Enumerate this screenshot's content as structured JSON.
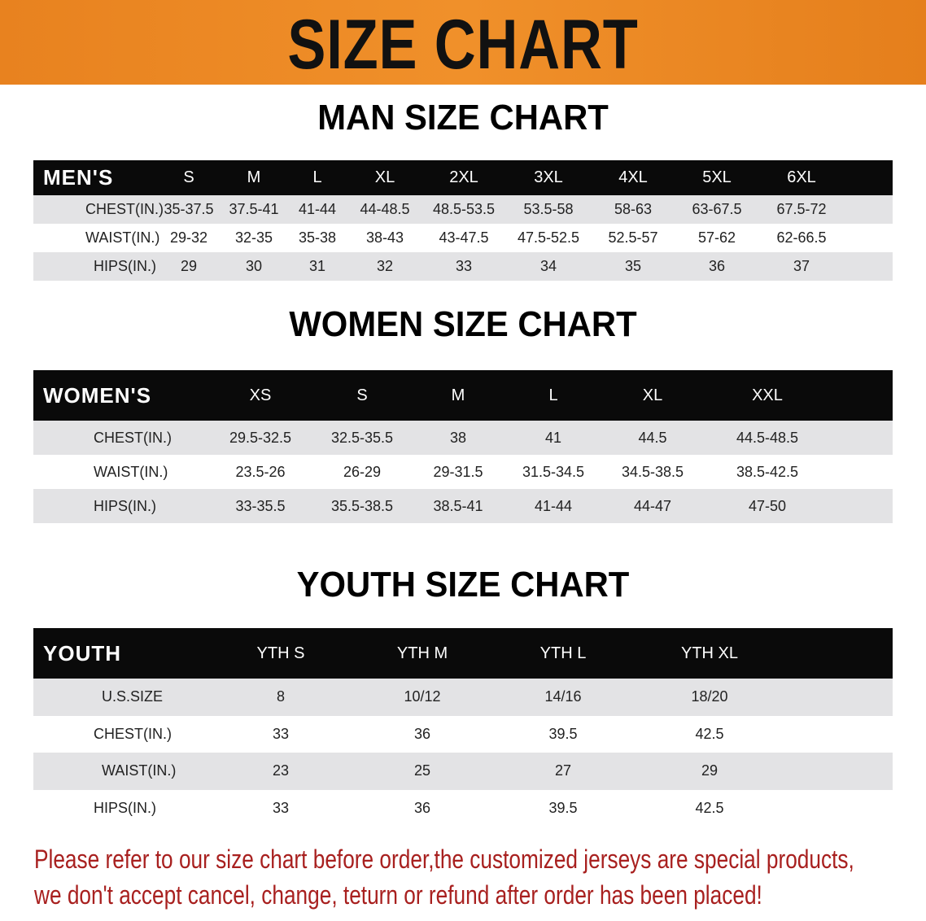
{
  "banner": {
    "title": "SIZE CHART",
    "color": "#ec8622"
  },
  "men": {
    "title": "MAN SIZE CHART",
    "header": [
      "MEN'S",
      "S",
      "M",
      "L",
      "XL",
      "2XL",
      "3XL",
      "4XL",
      "5XL",
      "6XL"
    ],
    "rows": [
      [
        "CHEST(IN.)",
        "35-37.5",
        "37.5-41",
        "41-44",
        "44-48.5",
        "48.5-53.5",
        "53.5-58",
        "58-63",
        "63-67.5",
        "67.5-72"
      ],
      [
        "WAIST(IN.)",
        "29-32",
        "32-35",
        "35-38",
        "38-43",
        "43-47.5",
        "47.5-52.5",
        "52.5-57",
        "57-62",
        "62-66.5"
      ],
      [
        "HIPS(IN.)",
        "29",
        "30",
        "31",
        "32",
        "33",
        "34",
        "35",
        "36",
        "37"
      ]
    ]
  },
  "women": {
    "title": "WOMEN SIZE CHART",
    "header": [
      "WOMEN'S",
      "XS",
      "S",
      "M",
      "L",
      "XL",
      "XXL"
    ],
    "rows": [
      [
        "CHEST(IN.)",
        "29.5-32.5",
        "32.5-35.5",
        "38",
        "41",
        "44.5",
        "44.5-48.5"
      ],
      [
        "WAIST(IN.)",
        "23.5-26",
        "26-29",
        "29-31.5",
        "31.5-34.5",
        "34.5-38.5",
        "38.5-42.5"
      ],
      [
        "HIPS(IN.)",
        "33-35.5",
        "35.5-38.5",
        "38.5-41",
        "41-44",
        "44-47",
        "47-50"
      ]
    ]
  },
  "youth": {
    "title": "YOUTH SIZE CHART",
    "header": [
      "YOUTH",
      "YTH S",
      "YTH M",
      "YTH L",
      "YTH XL"
    ],
    "rows": [
      [
        "U.S.SIZE",
        "8",
        "10/12",
        "14/16",
        "18/20"
      ],
      [
        "CHEST(IN.)",
        "33",
        "36",
        "39.5",
        "42.5"
      ],
      [
        "WAIST(IN.)",
        "23",
        "25",
        "27",
        "29"
      ],
      [
        "HIPS(IN.)",
        "33",
        "36",
        "39.5",
        "42.5"
      ]
    ]
  },
  "notice": {
    "line1": "Please refer to our size chart before order,the customized jerseys are special products,",
    "line2": "we don't accept cancel, change, teturn or refund after order has been placed!",
    "color": "#a8201f"
  }
}
